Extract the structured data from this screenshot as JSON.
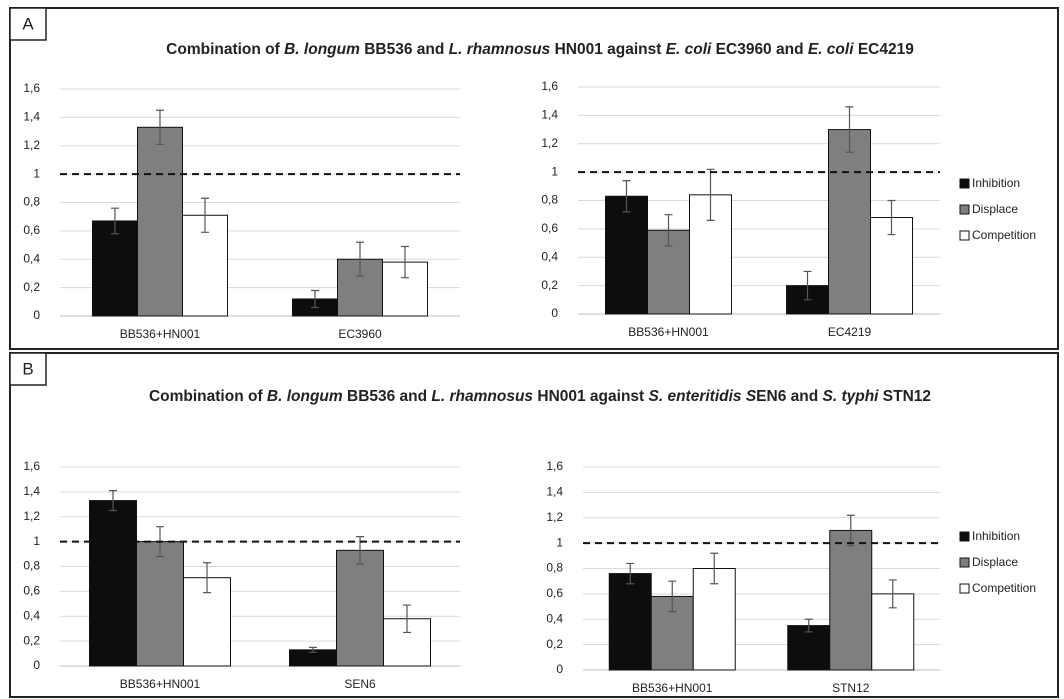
{
  "panels": [
    {
      "label": "A",
      "title": [
        {
          "text": "Combination of "
        },
        {
          "text": "B. longum",
          "italic": true
        },
        {
          "text": " BB536 and "
        },
        {
          "text": "L. rhamnosus",
          "italic": true
        },
        {
          "text": " HN001 against "
        },
        {
          "text": "E. coli",
          "italic": true
        },
        {
          "text": " EC3960 and "
        },
        {
          "text": "E. coli",
          "italic": true
        },
        {
          "text": " EC4219"
        }
      ]
    },
    {
      "label": "B",
      "title": [
        {
          "text": "Combination of "
        },
        {
          "text": "B. longum",
          "italic": true
        },
        {
          "text": " BB536 and "
        },
        {
          "text": "L. rhamnosus",
          "italic": true
        },
        {
          "text": " HN001 against "
        },
        {
          "text": "S. enteritidis S",
          "italic": true
        },
        {
          "text": "EN6 and "
        },
        {
          "text": "S. typhi",
          "italic": true
        },
        {
          "text": " STN12"
        }
      ]
    }
  ],
  "chart_data": [
    {
      "type": "bar",
      "categories": [
        "BB536+HN001",
        "EC3960"
      ],
      "series": [
        {
          "color": "#0d0d0d",
          "values": [
            0.67,
            0.12
          ],
          "errors": [
            0.09,
            0.06
          ]
        },
        {
          "color": "#7f7f7f",
          "values": [
            1.33,
            0.4
          ],
          "errors": [
            0.12,
            0.12
          ]
        },
        {
          "color": "#ffffff",
          "values": [
            0.71,
            0.38
          ],
          "errors": [
            0.12,
            0.11
          ]
        }
      ],
      "ylim": [
        0,
        1.6
      ],
      "yticks": [
        0,
        {
          "value": 0.2,
          "label": "0,2"
        },
        {
          "value": 0.4,
          "label": "0,4"
        },
        {
          "value": 0.6,
          "label": "0,6"
        },
        {
          "value": 0.8,
          "label": "0,8"
        },
        1,
        {
          "value": 1.2,
          "label": "1,2"
        },
        {
          "value": 1.4,
          "label": "1,4"
        },
        {
          "value": 1.6,
          "label": "1,6"
        }
      ],
      "grid": true,
      "reference_line": 1
    },
    {
      "type": "bar",
      "categories": [
        "BB536+HN001",
        "EC4219"
      ],
      "series": [
        {
          "name": "Inhibition",
          "color": "#0d0d0d",
          "values": [
            0.83,
            0.2
          ],
          "errors": [
            0.11,
            0.1
          ]
        },
        {
          "name": "Displace",
          "color": "#7f7f7f",
          "values": [
            0.59,
            1.3
          ],
          "errors": [
            0.11,
            0.16
          ]
        },
        {
          "name": "Competition",
          "color": "#ffffff",
          "values": [
            0.84,
            0.68
          ],
          "errors": [
            0.18,
            0.12
          ]
        }
      ],
      "ylim": [
        0,
        1.6
      ],
      "yticks": [
        0,
        {
          "value": 0.2,
          "label": "0,2"
        },
        {
          "value": 0.4,
          "label": "0,4"
        },
        {
          "value": 0.6,
          "label": "0,6"
        },
        {
          "value": 0.8,
          "label": "0,8"
        },
        1,
        {
          "value": 1.2,
          "label": "1,2"
        },
        {
          "value": 1.4,
          "label": "1,4"
        },
        {
          "value": 1.6,
          "label": "1,6"
        }
      ],
      "grid": true,
      "reference_line": 1,
      "legend": "right"
    },
    {
      "type": "bar",
      "categories": [
        "BB536+HN001",
        "SEN6"
      ],
      "series": [
        {
          "color": "#0d0d0d",
          "values": [
            1.33,
            0.13
          ],
          "errors": [
            0.08,
            0.02
          ]
        },
        {
          "color": "#7f7f7f",
          "values": [
            1.0,
            0.93
          ],
          "errors": [
            0.12,
            0.11
          ]
        },
        {
          "color": "#ffffff",
          "values": [
            0.71,
            0.38
          ],
          "errors": [
            0.12,
            0.11
          ]
        }
      ],
      "ylim": [
        0,
        1.6
      ],
      "yticks": [
        0,
        {
          "value": 0.2,
          "label": "0,2"
        },
        {
          "value": 0.4,
          "label": "0,4"
        },
        {
          "value": 0.6,
          "label": "0,6"
        },
        {
          "value": 0.8,
          "label": "0,8"
        },
        1,
        {
          "value": 1.2,
          "label": "1,2"
        },
        {
          "value": 1.4,
          "label": "1,4"
        },
        {
          "value": 1.6,
          "label": "1,6"
        }
      ],
      "grid": true,
      "reference_line": 1
    },
    {
      "type": "bar",
      "categories": [
        "BB536+HN001",
        "STN12"
      ],
      "series": [
        {
          "name": "Inhibition",
          "color": "#0d0d0d",
          "values": [
            0.76,
            0.35
          ],
          "errors": [
            0.08,
            0.05
          ]
        },
        {
          "name": "Displace",
          "color": "#7f7f7f",
          "values": [
            0.58,
            1.1
          ],
          "errors": [
            0.12,
            0.12
          ]
        },
        {
          "name": "Competition",
          "color": "#ffffff",
          "values": [
            0.8,
            0.6
          ],
          "errors": [
            0.12,
            0.11
          ]
        }
      ],
      "ylim": [
        0,
        1.6
      ],
      "yticks": [
        0,
        {
          "value": 0.2,
          "label": "0,2"
        },
        {
          "value": 0.4,
          "label": "0,4"
        },
        {
          "value": 0.6,
          "label": "0,6"
        },
        {
          "value": 0.8,
          "label": "0,8"
        },
        1,
        {
          "value": 1.2,
          "label": "1,2"
        },
        {
          "value": 1.4,
          "label": "1,4"
        },
        {
          "value": 1.6,
          "label": "1,6"
        }
      ],
      "grid": true,
      "reference_line": 1,
      "legend": "right"
    }
  ]
}
